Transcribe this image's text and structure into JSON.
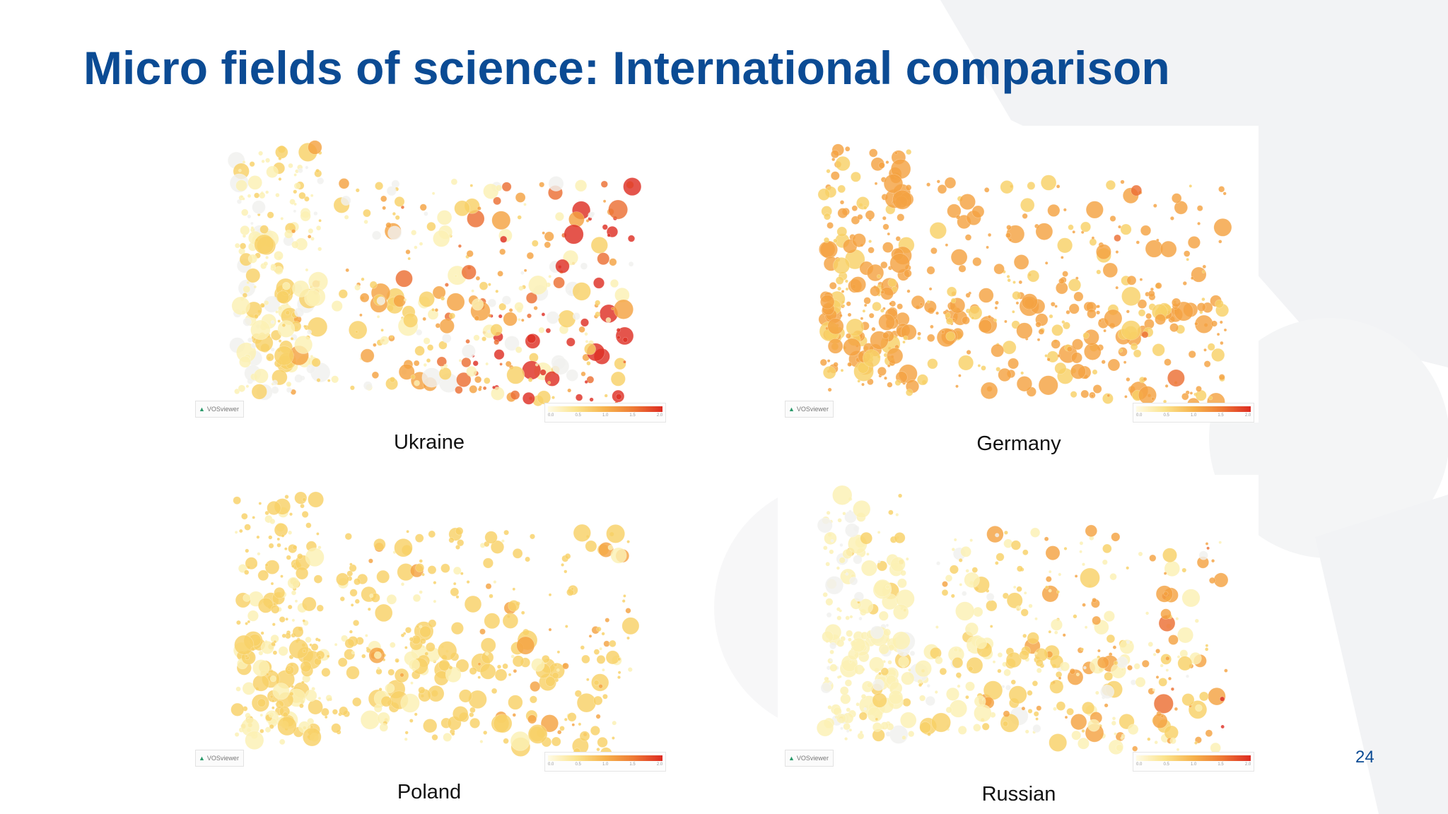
{
  "slide": {
    "title": "Micro fields of science: International comparison",
    "page_number": "24",
    "title_color": "#0b4b94"
  },
  "panels": [
    {
      "id": "ukraine",
      "caption": "Ukraine",
      "logo_text": "VOSviewer",
      "profile": "ukraine"
    },
    {
      "id": "germany",
      "caption": "Germany",
      "logo_text": "VOSviewer",
      "profile": "germany"
    },
    {
      "id": "poland",
      "caption": "Poland",
      "logo_text": "VOSviewer",
      "profile": "poland"
    },
    {
      "id": "russian",
      "caption": "Russian",
      "logo_text": "VOSviewer",
      "profile": "russian"
    }
  ],
  "color_scale": {
    "colors": [
      "#f0f0ee",
      "#fbf0b3",
      "#f8d167",
      "#f4a242",
      "#ec6f33",
      "#de2f24"
    ],
    "tick_labels": [
      "0.0",
      "0.5",
      "1.0",
      "1.5",
      "2.0"
    ]
  }
}
